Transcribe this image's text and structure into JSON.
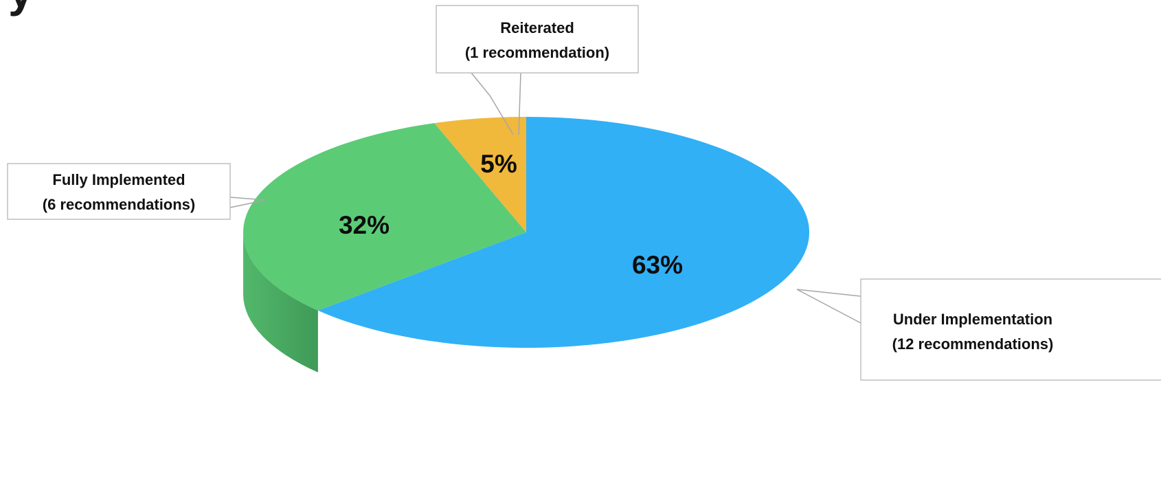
{
  "chart_data": {
    "type": "pie",
    "style": "3d",
    "title": "",
    "slices": [
      {
        "name": "Under Implementation",
        "count_label": "(12 recommendations)",
        "value": 12,
        "percent_label": "63%",
        "top_color": "#31b0f5",
        "side_color": "#1e6f9c",
        "side_dark": "#174a68"
      },
      {
        "name": "Fully Implemented",
        "count_label": "(6 recommendations)",
        "value": 6,
        "percent_label": "32%",
        "top_color": "#5ccb76",
        "side_color": "#49ac64",
        "side_dark": "#3e9657"
      },
      {
        "name": "Reiterated",
        "count_label": "(1 recommendation)",
        "value": 1,
        "percent_label": "5%",
        "top_color": "#f0b93c",
        "side_color": "#c99527",
        "side_dark": "#a9791a"
      }
    ]
  }
}
